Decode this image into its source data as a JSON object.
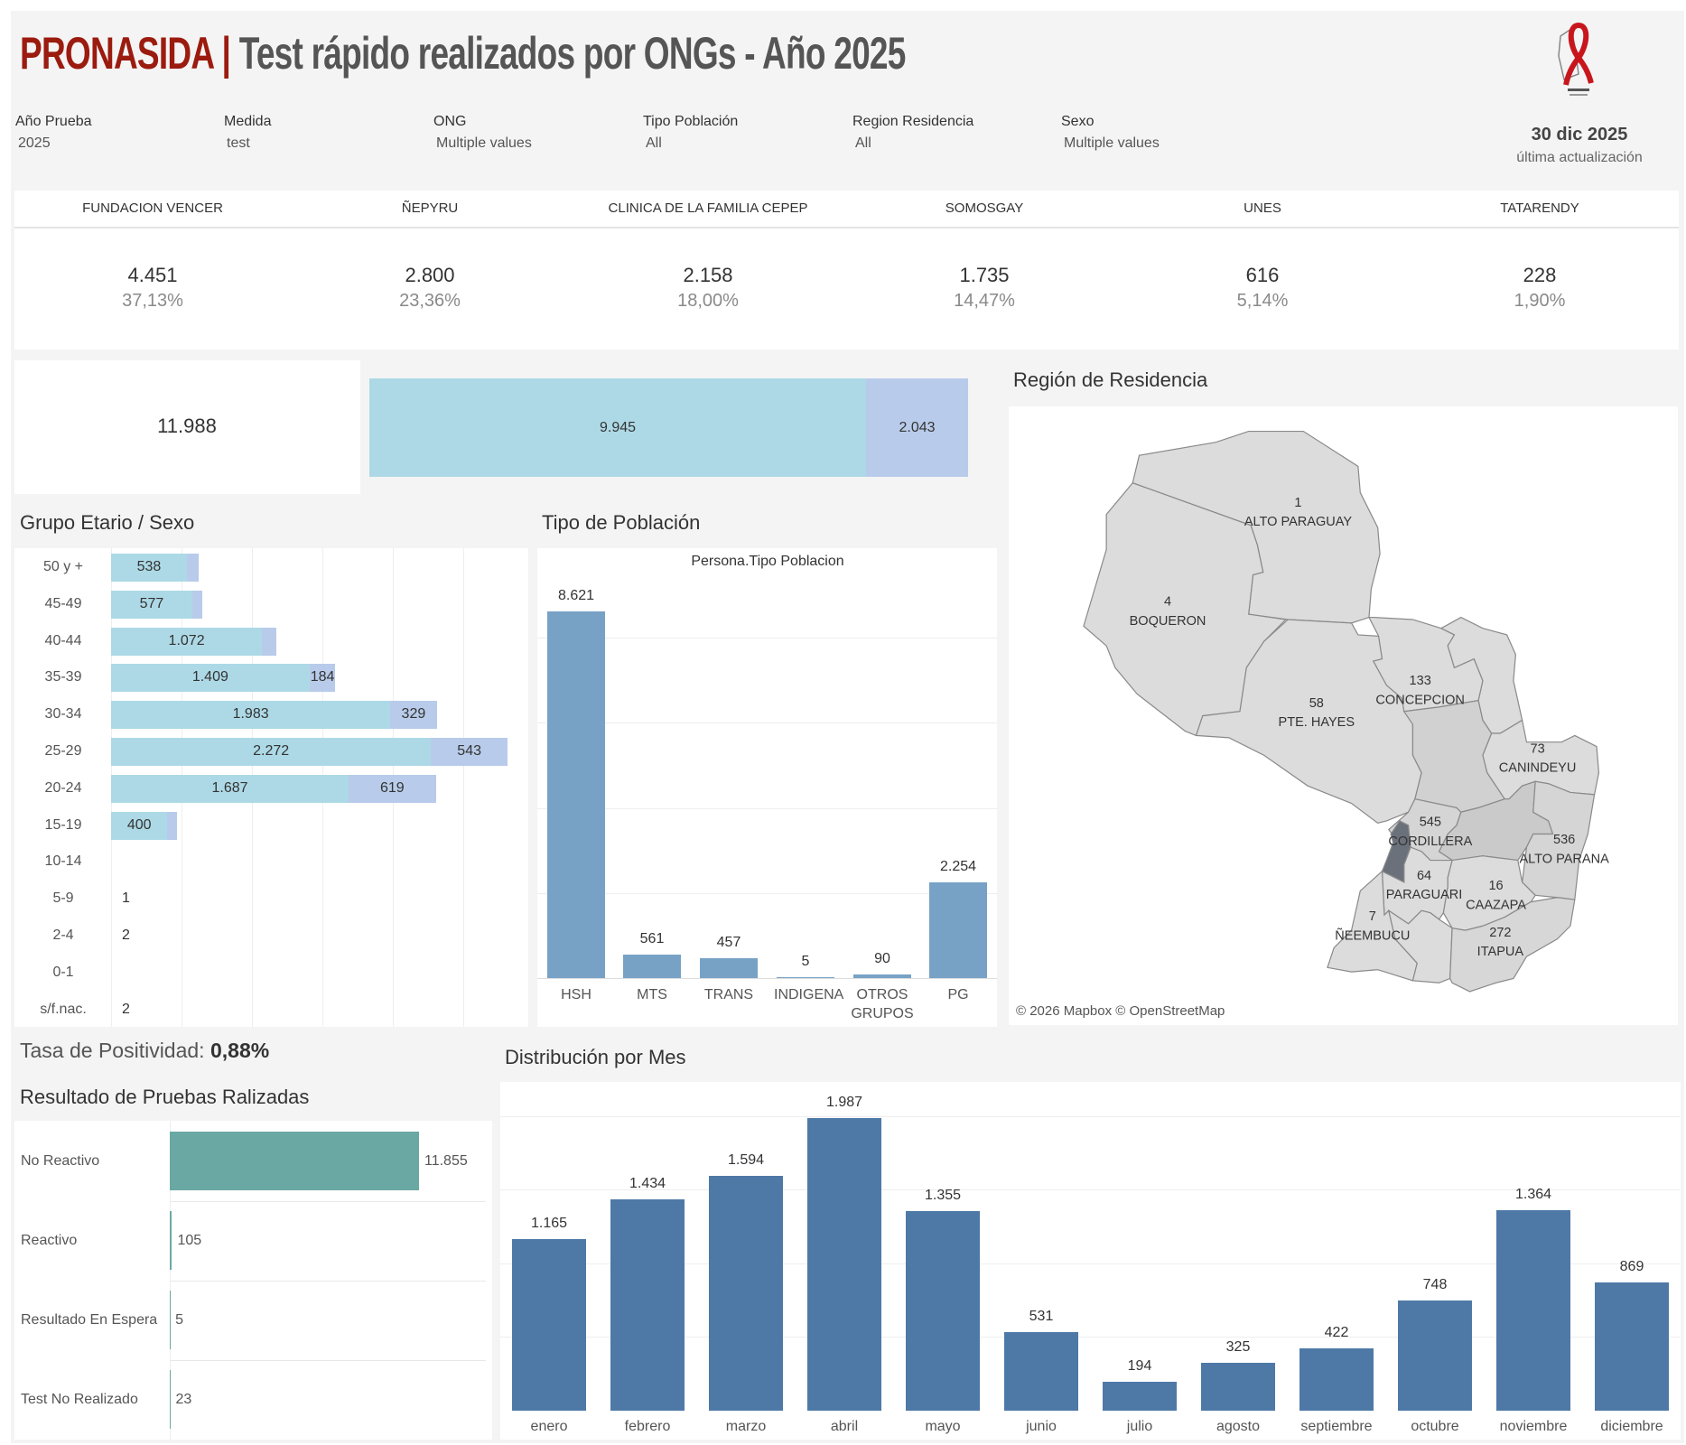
{
  "header": {
    "brand": "PRONASIDA",
    "separator": "|",
    "title": "Test rápido realizados por ONGs - Año 2025",
    "logo_text": "PRONASIDA"
  },
  "filters": [
    {
      "label": "Año Prueba",
      "value": "2025"
    },
    {
      "label": "Medida",
      "value": "test"
    },
    {
      "label": "ONG",
      "value": "Multiple values"
    },
    {
      "label": "Tipo Población",
      "value": "All"
    },
    {
      "label": "Region Residencia",
      "value": "All"
    },
    {
      "label": "Sexo",
      "value": "Multiple values"
    }
  ],
  "update": {
    "date": "30 dic 2025",
    "label": "última actualización"
  },
  "ongs": [
    {
      "name": "FUNDACION VENCER",
      "value": "4.451",
      "pct": "37,13%"
    },
    {
      "name": "ÑEPYRU",
      "value": "2.800",
      "pct": "23,36%"
    },
    {
      "name": "CLINICA DE LA FAMILIA CEPEP",
      "value": "2.158",
      "pct": "18,00%"
    },
    {
      "name": "SOMOSGAY",
      "value": "1.735",
      "pct": "14,47%"
    },
    {
      "name": "UNES",
      "value": "616",
      "pct": "5,14%"
    },
    {
      "name": "TATARENDY",
      "value": "228",
      "pct": "1,90%"
    }
  ],
  "total": {
    "value": "11.988",
    "split": [
      {
        "value": 9945,
        "label": "9.945",
        "color": "#add9e6"
      },
      {
        "value": 2043,
        "label": "2.043",
        "color": "#b8cbea"
      }
    ]
  },
  "colors": {
    "brand_red": "#9b1b0f",
    "primary": "#add9e6",
    "secondary": "#b8cbea",
    "tipo_bar": "#77a2c6",
    "month_bar": "#4e79a7",
    "result_bar": "#6aa9a3",
    "central": "#6b717b"
  },
  "chart_data": [
    {
      "type": "bar",
      "title": "Grupo Etario / Sexo",
      "orientation": "horizontal",
      "stacked": true,
      "categories": [
        "50 y +",
        "45-49",
        "40-44",
        "35-39",
        "30-34",
        "25-29",
        "20-24",
        "15-19",
        "10-14",
        "5-9",
        "2-4",
        "0-1",
        "s/f.nac."
      ],
      "series": [
        {
          "name": "primary",
          "values": [
            538,
            577,
            1072,
            1409,
            1983,
            2272,
            1687,
            400,
            0,
            1,
            2,
            0,
            2
          ],
          "labels": [
            "538",
            "577",
            "1.072",
            "1.409",
            "1.983",
            "2.272",
            "1.687",
            "400",
            null,
            "1",
            "2",
            null,
            "2"
          ]
        },
        {
          "name": "secondary",
          "values": [
            85,
            70,
            100,
            184,
            329,
            543,
            619,
            70,
            0,
            0,
            0,
            0,
            0
          ],
          "labels": [
            null,
            null,
            null,
            "184",
            "329",
            "543",
            "619",
            null,
            null,
            null,
            null,
            null,
            null
          ]
        }
      ],
      "xlim": [
        0,
        2900
      ],
      "grid_step": 500
    },
    {
      "type": "bar",
      "title": "Tipo de Población",
      "subtitle": "Persona.Tipo Poblacion",
      "categories": [
        "HSH",
        "MTS",
        "TRANS",
        "INDIGENA",
        "OTROS GRUPOS",
        "PG"
      ],
      "values": [
        8621,
        561,
        457,
        5,
        90,
        2254
      ],
      "labels": [
        "8.621",
        "561",
        "457",
        "5",
        "90",
        "2.254"
      ],
      "ylim": [
        0,
        9500
      ],
      "grid_step": 2000
    },
    {
      "type": "map",
      "title": "Región de Residencia",
      "attribution": "© 2026 Mapbox © OpenStreetMap",
      "regions": [
        {
          "name": "ALTO PARAGUAY",
          "value": "1"
        },
        {
          "name": "BOQUERON",
          "value": "4"
        },
        {
          "name": "PTE. HAYES",
          "value": "58"
        },
        {
          "name": "CONCEPCION",
          "value": "133"
        },
        {
          "name": "CANINDEYU",
          "value": "73"
        },
        {
          "name": "CORDILLERA",
          "value": "545"
        },
        {
          "name": "ALTO PARANA",
          "value": "536"
        },
        {
          "name": "PARAGUARI",
          "value": "64"
        },
        {
          "name": "CAAZAPA",
          "value": "16"
        },
        {
          "name": "ÑEEMBUCU",
          "value": "7"
        },
        {
          "name": "ITAPUA",
          "value": "272"
        }
      ]
    },
    {
      "type": "bar",
      "title": "Resultado de Pruebas Ralizadas",
      "orientation": "horizontal",
      "categories": [
        "No Reactivo",
        "Reactivo",
        "Resultado En Espera",
        "Test No Realizado"
      ],
      "values": [
        11855,
        105,
        5,
        23
      ],
      "labels": [
        "11.855",
        "105",
        "5",
        "23"
      ],
      "xlim": [
        0,
        15000
      ]
    },
    {
      "type": "bar",
      "title": "Distribución por Mes",
      "categories": [
        "enero",
        "febrero",
        "marzo",
        "abril",
        "mayo",
        "junio",
        "julio",
        "agosto",
        "septiembre",
        "octubre",
        "noviembre",
        "diciembre"
      ],
      "values": [
        1165,
        1434,
        1594,
        1987,
        1355,
        531,
        194,
        325,
        422,
        748,
        1364,
        869
      ],
      "labels": [
        "1.165",
        "1.434",
        "1.594",
        "1.987",
        "1.355",
        "531",
        "194",
        "325",
        "422",
        "748",
        "1.364",
        "869"
      ],
      "grid_step": 500
    }
  ],
  "positivity": {
    "label": "Tasa de Positividad:",
    "value": "0,88%"
  }
}
